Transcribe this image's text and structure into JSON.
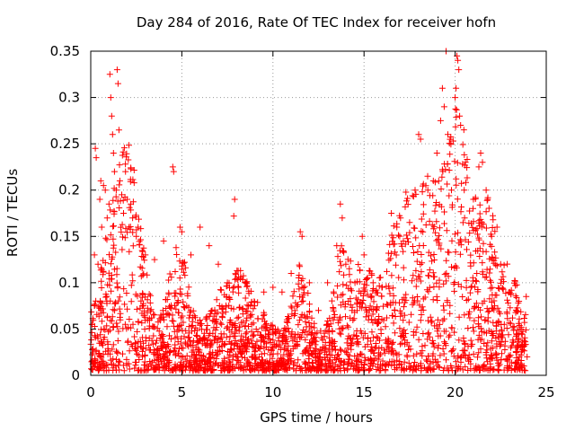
{
  "chart_data": {
    "type": "scatter",
    "title": "Day 284 of 2016, Rate Of TEC Index for receiver hofn",
    "xlabel": "GPS time / hours",
    "ylabel": "ROTI / TECUs",
    "xlim": [
      0,
      25
    ],
    "ylim": [
      0,
      0.35
    ],
    "x_ticks": [
      0,
      5,
      10,
      15,
      20,
      25
    ],
    "x_tick_labels": [
      "0",
      "5",
      "10",
      "15",
      "20",
      "25"
    ],
    "y_ticks": [
      0,
      0.05,
      0.1,
      0.15,
      0.2,
      0.25,
      0.3,
      0.35
    ],
    "y_tick_labels": [
      "0",
      "0.05",
      "0.1",
      "0.15",
      "0.2",
      "0.25",
      "0.3",
      "0.35"
    ],
    "grid": true,
    "marker": "+",
    "series_color": "#ff0000",
    "series": [
      {
        "name": "ROTI",
        "points": [
          [
            0.1,
            0.015
          ],
          [
            0.2,
            0.13
          ],
          [
            0.25,
            0.245
          ],
          [
            0.3,
            0.235
          ],
          [
            0.4,
            0.12
          ],
          [
            0.5,
            0.19
          ],
          [
            0.55,
            0.21
          ],
          [
            0.6,
            0.16
          ],
          [
            0.7,
            0.205
          ],
          [
            0.8,
            0.2
          ],
          [
            0.9,
            0.17
          ],
          [
            1.0,
            0.185
          ],
          [
            1.05,
            0.325
          ],
          [
            1.1,
            0.3
          ],
          [
            1.15,
            0.28
          ],
          [
            1.2,
            0.26
          ],
          [
            1.25,
            0.24
          ],
          [
            1.3,
            0.22
          ],
          [
            1.4,
            0.2
          ],
          [
            1.45,
            0.33
          ],
          [
            1.5,
            0.315
          ],
          [
            1.55,
            0.265
          ],
          [
            1.6,
            0.21
          ],
          [
            1.7,
            0.195
          ],
          [
            1.8,
            0.175
          ],
          [
            2.0,
            0.19
          ],
          [
            2.1,
            0.16
          ],
          [
            2.2,
            0.185
          ],
          [
            2.3,
            0.17
          ],
          [
            2.5,
            0.15
          ],
          [
            2.6,
            0.16
          ],
          [
            3.0,
            0.13
          ],
          [
            3.5,
            0.125
          ],
          [
            4.0,
            0.145
          ],
          [
            4.5,
            0.225
          ],
          [
            4.55,
            0.22
          ],
          [
            4.9,
            0.16
          ],
          [
            5.0,
            0.155
          ],
          [
            5.5,
            0.13
          ],
          [
            6.0,
            0.16
          ],
          [
            6.5,
            0.14
          ],
          [
            7.0,
            0.12
          ],
          [
            7.5,
            0.1
          ],
          [
            7.9,
            0.19
          ],
          [
            7.85,
            0.172
          ],
          [
            8.5,
            0.1
          ],
          [
            9.0,
            0.075
          ],
          [
            9.5,
            0.09
          ],
          [
            10.0,
            0.095
          ],
          [
            10.5,
            0.09
          ],
          [
            11.0,
            0.11
          ],
          [
            11.5,
            0.155
          ],
          [
            11.6,
            0.15
          ],
          [
            12.0,
            0.1
          ],
          [
            12.5,
            0.07
          ],
          [
            13.0,
            0.1
          ],
          [
            13.5,
            0.14
          ],
          [
            13.7,
            0.185
          ],
          [
            13.8,
            0.17
          ],
          [
            14.0,
            0.12
          ],
          [
            14.5,
            0.1
          ],
          [
            14.9,
            0.15
          ],
          [
            15.0,
            0.13
          ],
          [
            15.5,
            0.1
          ],
          [
            16.0,
            0.095
          ],
          [
            16.5,
            0.175
          ],
          [
            16.8,
            0.16
          ],
          [
            17.0,
            0.17
          ],
          [
            17.5,
            0.165
          ],
          [
            17.8,
            0.2
          ],
          [
            18.0,
            0.26
          ],
          [
            18.1,
            0.255
          ],
          [
            18.5,
            0.2
          ],
          [
            18.8,
            0.21
          ],
          [
            19.0,
            0.24
          ],
          [
            19.2,
            0.275
          ],
          [
            19.3,
            0.31
          ],
          [
            19.4,
            0.29
          ],
          [
            19.5,
            0.35
          ],
          [
            19.6,
            0.26
          ],
          [
            19.8,
            0.2
          ],
          [
            20.0,
            0.3
          ],
          [
            20.05,
            0.31
          ],
          [
            20.1,
            0.345
          ],
          [
            20.15,
            0.34
          ],
          [
            20.2,
            0.33
          ],
          [
            20.3,
            0.27
          ],
          [
            20.5,
            0.2
          ],
          [
            21.0,
            0.19
          ],
          [
            21.3,
            0.225
          ],
          [
            21.4,
            0.24
          ],
          [
            21.5,
            0.23
          ],
          [
            21.7,
            0.2
          ],
          [
            22.0,
            0.15
          ],
          [
            22.3,
            0.16
          ],
          [
            22.5,
            0.12
          ],
          [
            23.0,
            0.09
          ],
          [
            23.5,
            0.08
          ],
          [
            23.9,
            0.085
          ],
          [
            23.95,
            0.02
          ]
        ]
      }
    ]
  }
}
